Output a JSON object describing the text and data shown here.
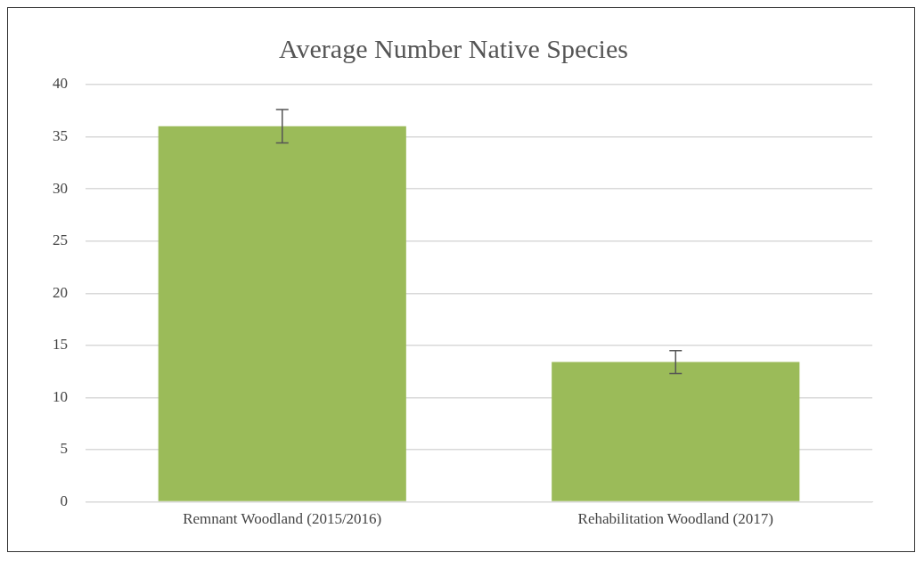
{
  "chart_data": {
    "type": "bar",
    "title": "Average Number Native Species",
    "categories": [
      "Remnant Woodland (2015/2016)",
      "Rehabilitation Woodland (2017)"
    ],
    "values": [
      36.0,
      13.4
    ],
    "color": "#9bbb59",
    "errors": [
      1.6,
      1.1
    ],
    "ylim": [
      0,
      40
    ],
    "yticks": [
      0,
      5,
      10,
      15,
      20,
      25,
      30,
      35,
      40
    ],
    "grid": "y",
    "legend": false
  }
}
